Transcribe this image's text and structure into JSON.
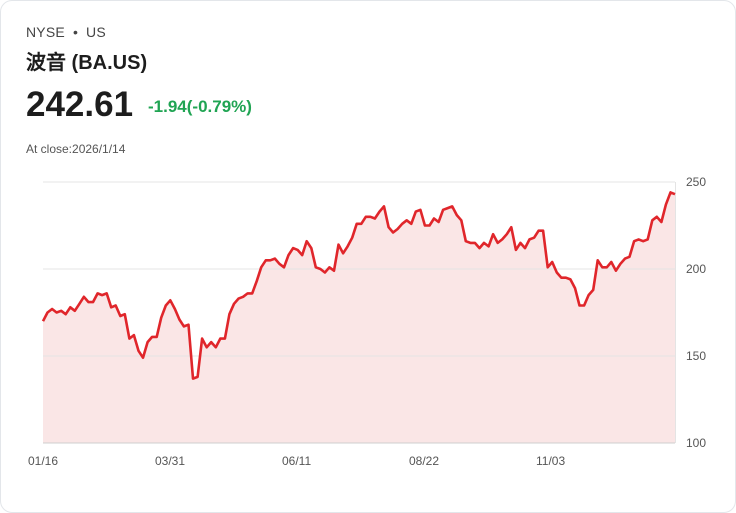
{
  "header": {
    "exchange": "NYSE",
    "dot": "•",
    "region": "US",
    "name": "波音 (BA.US)",
    "price": "242.61",
    "change": "-1.94(-0.79%)",
    "close_label": "At close:2026/1/14"
  },
  "colors": {
    "line": "#e0262b",
    "fill": "#fae6e6",
    "change": "#20a453"
  },
  "chart_data": {
    "type": "area",
    "title": "",
    "xlabel": "",
    "ylabel": "",
    "ylim": [
      100,
      250
    ],
    "yticks": [
      {
        "v": 250,
        "label": "250"
      },
      {
        "v": 200,
        "label": "200"
      },
      {
        "v": 150,
        "label": "150"
      },
      {
        "v": 100,
        "label": "100"
      }
    ],
    "xticks": [
      "01/16",
      "03/31",
      "06/11",
      "08/22",
      "11/03"
    ],
    "values": [
      170,
      175,
      177,
      175,
      176,
      174,
      178,
      176,
      180,
      184,
      181,
      181,
      186,
      185,
      186,
      178,
      179,
      173,
      174,
      160,
      162,
      153,
      149,
      158,
      161,
      161,
      172,
      179,
      182,
      177,
      171,
      167,
      168,
      137,
      138,
      160,
      155,
      158,
      155,
      160,
      160,
      174,
      180,
      183,
      184,
      186,
      186,
      193,
      201,
      205,
      205,
      206,
      203,
      201,
      208,
      212,
      211,
      208,
      216,
      212,
      201,
      200,
      198,
      201,
      199,
      214,
      209,
      213,
      218,
      226,
      226,
      230,
      230,
      229,
      233,
      236,
      224,
      221,
      223,
      226,
      228,
      226,
      233,
      234,
      225,
      225,
      229,
      227,
      234,
      235,
      236,
      231,
      228,
      216,
      215,
      215,
      212,
      215,
      213,
      220,
      215,
      217,
      220,
      224,
      211,
      215,
      212,
      217,
      218,
      222,
      222,
      201,
      204,
      198,
      195,
      195,
      194,
      189,
      179,
      179,
      185,
      188,
      205,
      201,
      201,
      204,
      199,
      203,
      206,
      207,
      216,
      217,
      216,
      217,
      228,
      230,
      227,
      237,
      244,
      243
    ],
    "grid": true
  }
}
